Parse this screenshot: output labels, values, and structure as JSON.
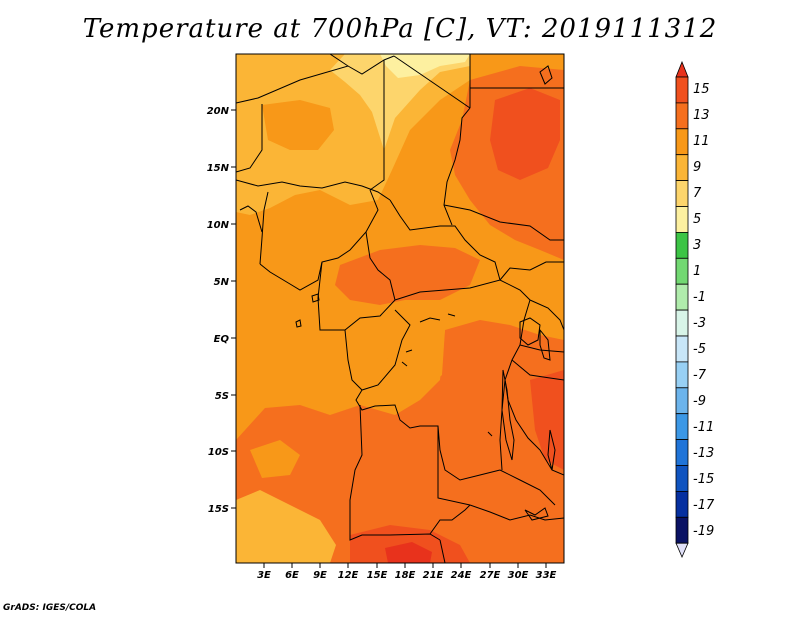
{
  "title": "Temperature at 700hPa [C], VT: 2019111312",
  "credit": "GrADS: IGES/COLA",
  "lat_labels": [
    "20N",
    "15N",
    "10N",
    "5N",
    "EQ",
    "5S",
    "10S",
    "15S"
  ],
  "lon_labels": [
    "3E",
    "6E",
    "9E",
    "12E",
    "15E",
    "18E",
    "21E",
    "24E",
    "27E",
    "30E",
    "33E"
  ],
  "colorbar": {
    "labels": [
      "15",
      "13",
      "11",
      "9",
      "7",
      "5",
      "3",
      "1",
      "-1",
      "-3",
      "-5",
      "-7",
      "-9",
      "-11",
      "-13",
      "-15",
      "-17",
      "-19"
    ],
    "colors": [
      "#e8321c",
      "#f0501e",
      "#f56f1e",
      "#f89818",
      "#fbb536",
      "#fdd56c",
      "#fdf0a0",
      "#3cc445",
      "#72d872",
      "#b0ecac",
      "#d8f4e8",
      "#c8e6f8",
      "#98d0f4",
      "#6cb4ec",
      "#3c98e6",
      "#2074d8",
      "#1054c0",
      "#0630a0",
      "#0a1264",
      "#e0e0f8"
    ]
  },
  "colors": {
    "very_warm": "#e8321c",
    "warm": "#f56f1e",
    "moderate": "#f89818",
    "mild": "#fbb536",
    "cool": "#fdd56c",
    "coolest": "#fdf0a0"
  }
}
